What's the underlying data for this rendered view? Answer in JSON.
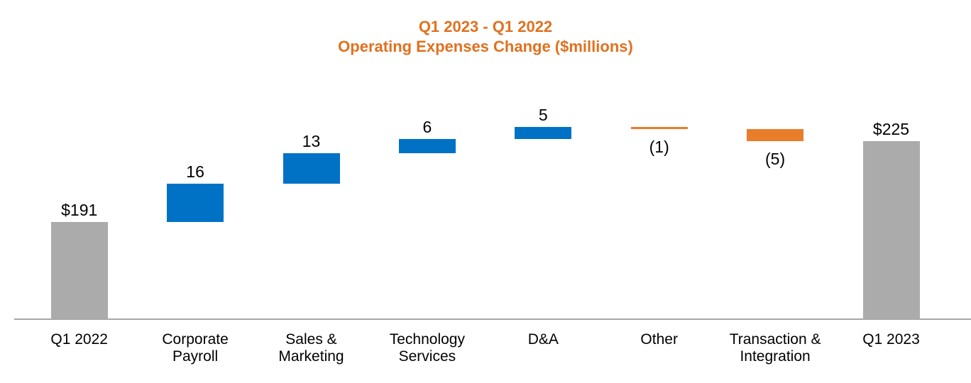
{
  "title": {
    "line1": "Q1 2023 - Q1 2022",
    "line2": "Operating Expenses Change ($millions)"
  },
  "colors": {
    "total_bar": "#ABABAB",
    "increase_bar": "#0072C6",
    "decrease_bar": "#E87D2B",
    "title_text": "#E0711F",
    "axis_line": "#A6A6A6",
    "label_text": "#000000",
    "background": "#FFFFFF"
  },
  "chart_data": {
    "type": "bar",
    "variant": "waterfall",
    "title": "Q1 2023 - Q1 2022 Operating Expenses Change ($millions)",
    "categories": [
      "Q1 2022",
      "Corporate Payroll",
      "Sales & Marketing",
      "Technology Services",
      "D&A",
      "Other",
      "Transaction & Integration",
      "Q1 2023"
    ],
    "values": [
      191,
      16,
      13,
      6,
      5,
      -1,
      -5,
      225
    ],
    "value_labels": [
      "$191",
      "16",
      "13",
      "6",
      "5",
      "(1)",
      "(5)",
      "$225"
    ],
    "y_axis": {
      "min": 150,
      "max": 255,
      "gridlines": false,
      "tick_labels": false,
      "axis_visible": true
    },
    "legend": "none",
    "bars": [
      {
        "id": "q1-2022",
        "label_lines": [
          "Q1 2022"
        ],
        "role": "total",
        "from": 0,
        "to": 191,
        "value": 191,
        "value_label": "$191",
        "label_position": "above"
      },
      {
        "id": "corporate-payroll",
        "label_lines": [
          "Corporate",
          "Payroll"
        ],
        "role": "increase",
        "from": 191,
        "to": 207,
        "value": 16,
        "value_label": "16",
        "label_position": "above"
      },
      {
        "id": "sales-marketing",
        "label_lines": [
          "Sales &",
          "Marketing"
        ],
        "role": "increase",
        "from": 207,
        "to": 220,
        "value": 13,
        "value_label": "13",
        "label_position": "above"
      },
      {
        "id": "technology-services",
        "label_lines": [
          "Technology",
          "Services"
        ],
        "role": "increase",
        "from": 220,
        "to": 226,
        "value": 6,
        "value_label": "6",
        "label_position": "above"
      },
      {
        "id": "d-and-a",
        "label_lines": [
          "D&A"
        ],
        "role": "increase",
        "from": 226,
        "to": 231,
        "value": 5,
        "value_label": "5",
        "label_position": "above"
      },
      {
        "id": "other",
        "label_lines": [
          "Other"
        ],
        "role": "decrease",
        "from": 231,
        "to": 230,
        "value": -1,
        "value_label": "(1)",
        "label_position": "below"
      },
      {
        "id": "transaction-integration",
        "label_lines": [
          "Transaction &",
          "Integration"
        ],
        "role": "decrease",
        "from": 230,
        "to": 225,
        "value": -5,
        "value_label": "(5)",
        "label_position": "below"
      },
      {
        "id": "q1-2023",
        "label_lines": [
          "Q1 2023"
        ],
        "role": "total",
        "from": 0,
        "to": 225,
        "value": 225,
        "value_label": "$225",
        "label_position": "above"
      }
    ]
  }
}
